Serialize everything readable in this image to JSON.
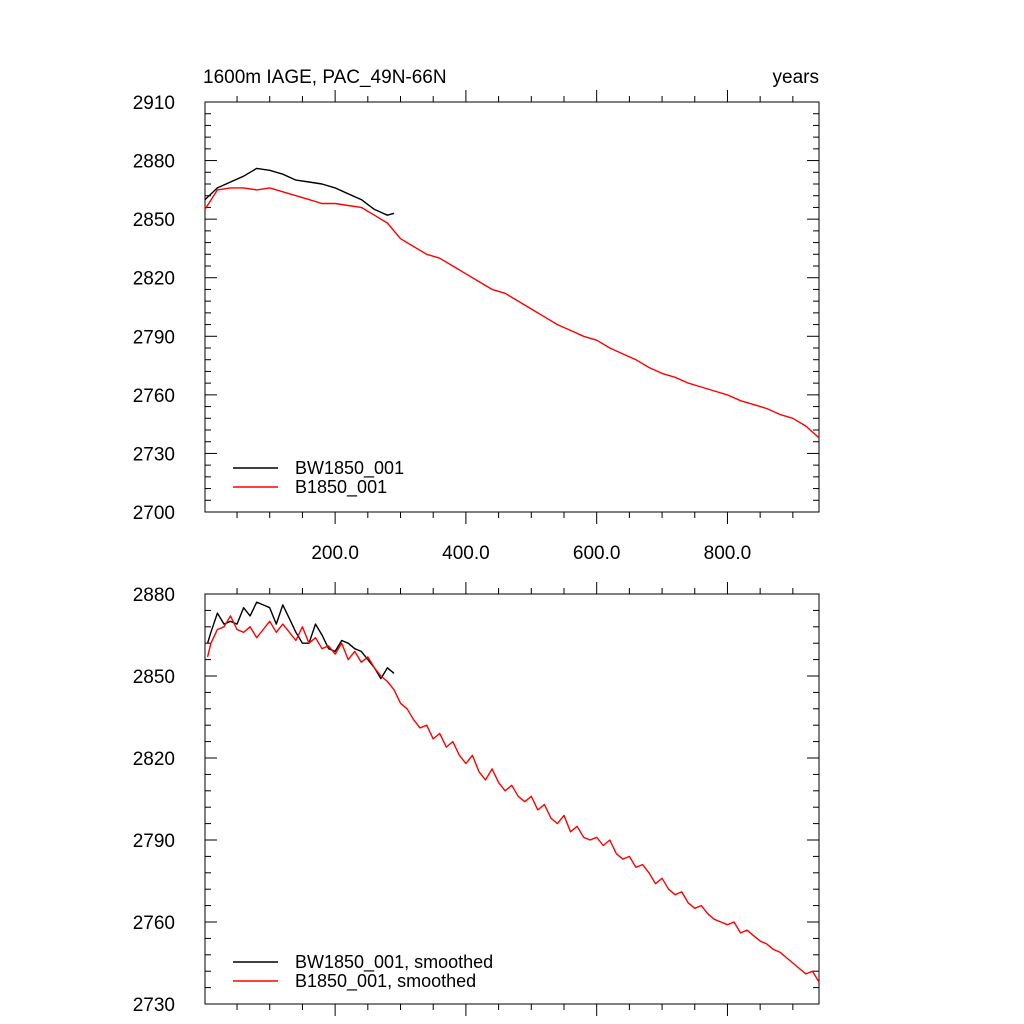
{
  "chart_data": [
    {
      "type": "line",
      "title_left": "1600m IAGE, PAC_49N-66N",
      "title_right": "years",
      "xlabel": "",
      "ylabel": "",
      "xlim": [
        1,
        940
      ],
      "ylim": [
        2700,
        2910
      ],
      "x_ticks": [
        200,
        400,
        600,
        800
      ],
      "x_tick_labels": [
        "200.0",
        "400.0",
        "600.0",
        "800.0"
      ],
      "y_ticks": [
        2700,
        2730,
        2760,
        2790,
        2820,
        2850,
        2880,
        2910
      ],
      "y_tick_labels": [
        "2700",
        "2730",
        "2760",
        "2790",
        "2820",
        "2850",
        "2880",
        "2910"
      ],
      "legend_position": "bottom-left",
      "series": [
        {
          "name": "BW1850_001",
          "color": "#000000",
          "x": [
            1,
            20,
            40,
            60,
            80,
            100,
            120,
            140,
            160,
            180,
            200,
            220,
            240,
            260,
            280,
            290
          ],
          "values": [
            2860,
            2866,
            2869,
            2872,
            2876,
            2875,
            2873,
            2870,
            2869,
            2868,
            2866,
            2863,
            2860,
            2855,
            2852,
            2853
          ]
        },
        {
          "name": "B1850_001",
          "color": "#ff0000",
          "x": [
            1,
            20,
            40,
            60,
            80,
            100,
            120,
            140,
            160,
            180,
            200,
            220,
            240,
            260,
            280,
            300,
            320,
            340,
            360,
            380,
            400,
            420,
            440,
            460,
            480,
            500,
            520,
            540,
            560,
            580,
            600,
            620,
            640,
            660,
            680,
            700,
            720,
            740,
            760,
            780,
            800,
            820,
            840,
            860,
            880,
            900,
            920,
            940
          ],
          "values": [
            2855,
            2865,
            2866,
            2866,
            2865,
            2866,
            2864,
            2862,
            2860,
            2858,
            2858,
            2857,
            2856,
            2852,
            2848,
            2840,
            2836,
            2832,
            2830,
            2826,
            2822,
            2818,
            2814,
            2812,
            2808,
            2804,
            2800,
            2796,
            2793,
            2790,
            2788,
            2784,
            2781,
            2778,
            2774,
            2771,
            2769,
            2766,
            2764,
            2762,
            2760,
            2757,
            2755,
            2753,
            2750,
            2748,
            2744,
            2738
          ]
        }
      ]
    },
    {
      "type": "line",
      "title_left": "",
      "title_right": "",
      "xlabel": "",
      "ylabel": "",
      "xlim": [
        1,
        940
      ],
      "ylim": [
        2730,
        2880
      ],
      "x_ticks": [
        200,
        400,
        600,
        800
      ],
      "x_tick_labels": [],
      "y_ticks": [
        2730,
        2760,
        2790,
        2820,
        2850,
        2880
      ],
      "y_tick_labels": [
        "2730",
        "2760",
        "2790",
        "2820",
        "2850",
        "2880"
      ],
      "legend_position": "bottom-left",
      "series": [
        {
          "name": "BW1850_001, smoothed",
          "color": "#000000",
          "x": [
            5,
            10,
            20,
            30,
            40,
            50,
            60,
            70,
            80,
            90,
            100,
            110,
            120,
            130,
            140,
            150,
            160,
            170,
            180,
            190,
            200,
            210,
            220,
            230,
            240,
            250,
            260,
            270,
            280,
            290
          ],
          "values": [
            2862,
            2866,
            2873,
            2869,
            2870,
            2869,
            2875,
            2872,
            2877,
            2876,
            2875,
            2869,
            2876,
            2871,
            2866,
            2862,
            2862,
            2869,
            2865,
            2860,
            2859,
            2863,
            2862,
            2860,
            2859,
            2856,
            2853,
            2849,
            2853,
            2851
          ]
        },
        {
          "name": "B1850_001, smoothed",
          "color": "#ff0000",
          "x": [
            5,
            10,
            20,
            30,
            40,
            50,
            60,
            70,
            80,
            90,
            100,
            110,
            120,
            130,
            140,
            150,
            160,
            170,
            180,
            190,
            200,
            210,
            220,
            230,
            240,
            250,
            260,
            270,
            280,
            290,
            300,
            310,
            320,
            330,
            340,
            350,
            360,
            370,
            380,
            390,
            400,
            410,
            420,
            430,
            440,
            450,
            460,
            470,
            480,
            490,
            500,
            510,
            520,
            530,
            540,
            550,
            560,
            570,
            580,
            590,
            600,
            610,
            620,
            630,
            640,
            650,
            660,
            670,
            680,
            690,
            700,
            710,
            720,
            730,
            740,
            750,
            760,
            770,
            780,
            790,
            800,
            810,
            820,
            830,
            840,
            850,
            860,
            870,
            880,
            890,
            900,
            910,
            920,
            930,
            940
          ],
          "values": [
            2857,
            2862,
            2867,
            2868,
            2872,
            2867,
            2866,
            2868,
            2864,
            2867,
            2870,
            2866,
            2869,
            2866,
            2863,
            2868,
            2862,
            2864,
            2860,
            2861,
            2858,
            2862,
            2856,
            2859,
            2855,
            2857,
            2853,
            2850,
            2848,
            2845,
            2840,
            2838,
            2834,
            2831,
            2832,
            2827,
            2829,
            2824,
            2826,
            2821,
            2818,
            2821,
            2815,
            2812,
            2816,
            2811,
            2808,
            2810,
            2806,
            2804,
            2806,
            2801,
            2803,
            2798,
            2796,
            2799,
            2793,
            2795,
            2791,
            2790,
            2791,
            2788,
            2790,
            2785,
            2783,
            2784,
            2780,
            2781,
            2778,
            2774,
            2776,
            2772,
            2770,
            2771,
            2767,
            2765,
            2766,
            2763,
            2761,
            2760,
            2759,
            2760,
            2756,
            2757,
            2755,
            2753,
            2752,
            2750,
            2749,
            2747,
            2745,
            2743,
            2741,
            2742,
            2738
          ]
        }
      ]
    }
  ]
}
